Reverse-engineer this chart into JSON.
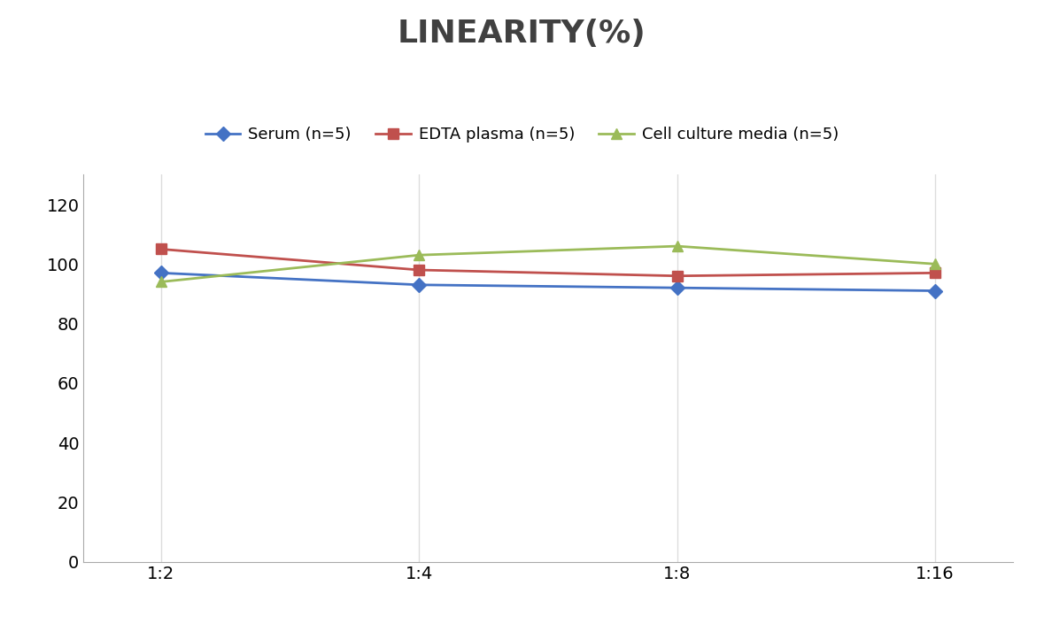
{
  "title": "LINEARITY(%)",
  "x_labels": [
    "1:2",
    "1:4",
    "1:8",
    "1:16"
  ],
  "series": [
    {
      "label": "Serum (n=5)",
      "values": [
        97,
        93,
        92,
        91
      ],
      "color": "#4472C4",
      "marker": "D",
      "marker_size": 8
    },
    {
      "label": "EDTA plasma (n=5)",
      "values": [
        105,
        98,
        96,
        97
      ],
      "color": "#C0504D",
      "marker": "s",
      "marker_size": 8
    },
    {
      "label": "Cell culture media (n=5)",
      "values": [
        94,
        103,
        106,
        100
      ],
      "color": "#9BBB59",
      "marker": "^",
      "marker_size": 9
    }
  ],
  "ylim": [
    0,
    130
  ],
  "yticks": [
    0,
    20,
    40,
    60,
    80,
    100,
    120
  ],
  "grid_color": "#DDDDDD",
  "background_color": "#FFFFFF",
  "title_fontsize": 26,
  "legend_fontsize": 13,
  "tick_fontsize": 14,
  "line_width": 2.0,
  "title_color": "#404040"
}
